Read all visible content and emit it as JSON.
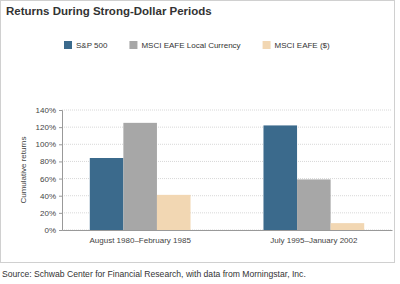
{
  "chart_data": {
    "type": "bar",
    "title": "Returns During Strong-Dollar Periods",
    "y_label": "Cumulative returns",
    "source": "Source: Schwab Center for Financial Research, with data from Morningstar, Inc.",
    "categories": [
      "August 1980–February 1985",
      "July 1995–January 2002"
    ],
    "series": [
      {
        "name": "S&P 500",
        "color": "#3b6a8c",
        "values": [
          84,
          122
        ]
      },
      {
        "name": "MSCI EAFE Local Currency",
        "color": "#a7a7a7",
        "values": [
          125,
          59
        ]
      },
      {
        "name": "MSCI EAFE ($)",
        "color": "#f2d7b3",
        "values": [
          41,
          8
        ]
      }
    ],
    "ylim": [
      0,
      140
    ],
    "yticks": [
      {
        "value": 0,
        "label": "0%"
      },
      {
        "value": 20,
        "label": "20%"
      },
      {
        "value": 40,
        "label": "40%"
      },
      {
        "value": 60,
        "label": "60%"
      },
      {
        "value": 80,
        "label": "80%"
      },
      {
        "value": 100,
        "label": "100%"
      },
      {
        "value": 120,
        "label": "120%"
      },
      {
        "value": 140,
        "label": "140%"
      }
    ],
    "grid": true,
    "legend": "top"
  }
}
